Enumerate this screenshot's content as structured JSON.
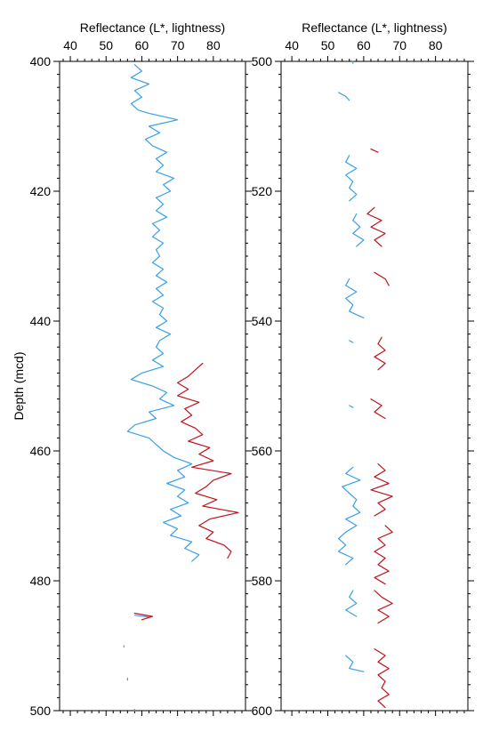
{
  "chart_data": [
    {
      "type": "line",
      "orientation": "depth-vertical",
      "xlabel": "Reflectance (L*, lightness)",
      "ylabel": "Depth (mcd)",
      "xlim": [
        37,
        89
      ],
      "ylim": [
        400,
        500
      ],
      "xticks": [
        40,
        50,
        60,
        70,
        80
      ],
      "yticks": [
        400,
        420,
        440,
        460,
        480,
        500
      ],
      "colors": {
        "blue": "#3aa0e8",
        "red": "#c0141c"
      },
      "series": [
        {
          "color": "blue",
          "segments": [
            [
              [
                400.5,
                58
              ],
              [
                401.5,
                60
              ],
              [
                402.5,
                57
              ],
              [
                403.5,
                62
              ],
              [
                404.5,
                58
              ],
              [
                405.5,
                60
              ],
              [
                406.5,
                57
              ],
              [
                407.5,
                59
              ],
              [
                408,
                62
              ],
              [
                409,
                70
              ],
              [
                410,
                62
              ],
              [
                411,
                65
              ],
              [
                412,
                61
              ],
              [
                413,
                63
              ],
              [
                414,
                67
              ],
              [
                415,
                64
              ],
              [
                416,
                66
              ],
              [
                417,
                64
              ],
              [
                418,
                69
              ],
              [
                419,
                66
              ],
              [
                420,
                68
              ],
              [
                421,
                64
              ],
              [
                422,
                66
              ],
              [
                423,
                64
              ],
              [
                424,
                67
              ],
              [
                425,
                63
              ],
              [
                426,
                65
              ],
              [
                427,
                63
              ],
              [
                428,
                66
              ],
              [
                429,
                64
              ],
              [
                430,
                65
              ],
              [
                431,
                63
              ],
              [
                432,
                66
              ],
              [
                433,
                64
              ],
              [
                434,
                67
              ],
              [
                435,
                64
              ],
              [
                436,
                66
              ],
              [
                437,
                63
              ],
              [
                438,
                66
              ],
              [
                439,
                65
              ],
              [
                440,
                67
              ],
              [
                441,
                64
              ],
              [
                442,
                68
              ],
              [
                443,
                65
              ],
              [
                444,
                64
              ],
              [
                445,
                66
              ],
              [
                446,
                63
              ],
              [
                447,
                66
              ],
              [
                448,
                60
              ],
              [
                449,
                57
              ],
              [
                450,
                63
              ],
              [
                451,
                67
              ],
              [
                452,
                65
              ],
              [
                453,
                69
              ],
              [
                454,
                62
              ],
              [
                455,
                64
              ],
              [
                456,
                58
              ],
              [
                457,
                56
              ],
              [
                458,
                62
              ],
              [
                459,
                64
              ],
              [
                460,
                66
              ],
              [
                461,
                69
              ],
              [
                462,
                74
              ],
              [
                463,
                70
              ],
              [
                464,
                72
              ],
              [
                465,
                67
              ],
              [
                466,
                72
              ],
              [
                467,
                70
              ],
              [
                468,
                73
              ],
              [
                469,
                68
              ],
              [
                470,
                71
              ],
              [
                471,
                66
              ],
              [
                472,
                70
              ],
              [
                473,
                68
              ],
              [
                474,
                74
              ],
              [
                475,
                72
              ],
              [
                476,
                76
              ],
              [
                477,
                74
              ]
            ],
            [
              [
                485.3,
                58
              ],
              [
                485.6,
                62
              ]
            ],
            [
              [
                490.0,
                55
              ],
              [
                490.2,
                55
              ]
            ],
            [
              [
                495.0,
                56
              ],
              [
                495.3,
                56
              ]
            ],
            [
              [
                499.8,
                58
              ],
              [
                500,
                58
              ]
            ]
          ]
        },
        {
          "color": "red",
          "segments": [
            [
              [
                446.5,
                77
              ],
              [
                447.5,
                75
              ],
              [
                448.5,
                73
              ],
              [
                449.5,
                70
              ],
              [
                450.5,
                73
              ],
              [
                451.5,
                70
              ],
              [
                452.5,
                76
              ],
              [
                453.5,
                72
              ],
              [
                454.5,
                74
              ],
              [
                455.5,
                71
              ],
              [
                456.5,
                75
              ],
              [
                457.5,
                77
              ],
              [
                458.5,
                73
              ],
              [
                459.5,
                79
              ],
              [
                460.5,
                76
              ],
              [
                461.5,
                80
              ],
              [
                462.5,
                74
              ],
              [
                463.5,
                85
              ],
              [
                464.5,
                80
              ],
              [
                465.5,
                78
              ],
              [
                466.5,
                75
              ],
              [
                467.5,
                81
              ],
              [
                468.5,
                77
              ],
              [
                469.5,
                87
              ],
              [
                470.5,
                79
              ],
              [
                471.5,
                76
              ],
              [
                472.5,
                80
              ],
              [
                473.5,
                78
              ],
              [
                474.5,
                83
              ],
              [
                475.5,
                85
              ],
              [
                476.5,
                84
              ]
            ],
            [
              [
                485,
                58
              ],
              [
                485.5,
                63
              ],
              [
                486,
                60
              ]
            ]
          ]
        }
      ]
    },
    {
      "type": "line",
      "orientation": "depth-vertical",
      "xlabel": "Reflectance (L*, lightness)",
      "ylabel": "",
      "xlim": [
        37,
        89
      ],
      "ylim": [
        500,
        600
      ],
      "xticks": [
        40,
        50,
        60,
        70,
        80
      ],
      "yticks": [
        500,
        520,
        540,
        560,
        580,
        600
      ],
      "colors": {
        "blue": "#3aa0e8",
        "red": "#c0141c"
      },
      "series": [
        {
          "color": "blue",
          "segments": [
            [
              [
                500,
                57
              ],
              [
                500.3,
                57
              ]
            ],
            [
              [
                504.8,
                53
              ],
              [
                505.4,
                55
              ],
              [
                506,
                56
              ]
            ],
            [
              [
                514.5,
                56
              ],
              [
                515.5,
                55
              ],
              [
                516.5,
                58
              ],
              [
                517.5,
                55
              ],
              [
                518.5,
                57
              ],
              [
                519.5,
                56
              ],
              [
                520.5,
                58
              ],
              [
                521.5,
                56
              ]
            ],
            [
              [
                523.5,
                58
              ],
              [
                524.5,
                57
              ],
              [
                525.5,
                59
              ],
              [
                526.5,
                57
              ],
              [
                527.5,
                60
              ],
              [
                528.5,
                58
              ]
            ],
            [
              [
                533.5,
                56
              ],
              [
                534.5,
                55
              ],
              [
                535.5,
                58
              ],
              [
                536.5,
                55
              ],
              [
                537.5,
                57
              ],
              [
                538.5,
                56
              ],
              [
                539.5,
                60
              ]
            ],
            [
              [
                543,
                56
              ],
              [
                543.3,
                57
              ]
            ],
            [
              [
                553,
                56
              ],
              [
                553.3,
                57
              ]
            ],
            [
              [
                562.5,
                57
              ],
              [
                563.5,
                55
              ],
              [
                564.5,
                59
              ],
              [
                565.5,
                54
              ],
              [
                566.5,
                56
              ],
              [
                567.5,
                58
              ],
              [
                568.5,
                57
              ],
              [
                569.5,
                59
              ],
              [
                570.5,
                55
              ],
              [
                571.5,
                58
              ],
              [
                572.5,
                55
              ],
              [
                573.5,
                53
              ],
              [
                574.5,
                55
              ],
              [
                575.5,
                53
              ],
              [
                576.5,
                57
              ],
              [
                577.5,
                55
              ]
            ],
            [
              [
                581.5,
                57
              ],
              [
                582.5,
                56
              ],
              [
                583.5,
                58
              ],
              [
                584.5,
                55
              ],
              [
                585.5,
                58
              ]
            ],
            [
              [
                591.5,
                55
              ],
              [
                592.5,
                57
              ],
              [
                593.5,
                56
              ],
              [
                594,
                60
              ]
            ]
          ]
        },
        {
          "color": "red",
          "segments": [
            [
              [
                513.5,
                62
              ],
              [
                514,
                64
              ]
            ],
            [
              [
                522.5,
                63
              ],
              [
                523.5,
                61
              ],
              [
                524.5,
                65
              ],
              [
                525.5,
                62
              ],
              [
                526.5,
                66
              ],
              [
                527.5,
                63
              ],
              [
                528.5,
                65
              ]
            ],
            [
              [
                532.5,
                63
              ],
              [
                533.5,
                66
              ],
              [
                534.5,
                67
              ]
            ],
            [
              [
                542.5,
                65
              ],
              [
                543.5,
                64
              ],
              [
                544.5,
                66
              ],
              [
                545.5,
                63
              ],
              [
                546.5,
                66
              ],
              [
                547.5,
                64
              ]
            ],
            [
              [
                552,
                62
              ],
              [
                553,
                65
              ],
              [
                554,
                63
              ],
              [
                555,
                66
              ]
            ],
            [
              [
                562,
                64
              ],
              [
                563,
                66
              ],
              [
                564,
                63
              ],
              [
                565,
                67
              ],
              [
                566,
                62
              ],
              [
                567,
                68
              ],
              [
                568,
                64
              ],
              [
                569,
                66
              ],
              [
                570,
                63
              ]
            ],
            [
              [
                571.5,
                66
              ],
              [
                572.5,
                68
              ],
              [
                573.5,
                64
              ],
              [
                574.5,
                66
              ],
              [
                575.5,
                63
              ],
              [
                576.5,
                66
              ],
              [
                577.5,
                64
              ],
              [
                578.5,
                67
              ],
              [
                579.5,
                63
              ],
              [
                580.5,
                66
              ]
            ],
            [
              [
                581.5,
                63
              ],
              [
                582.5,
                65
              ],
              [
                583.5,
                68
              ],
              [
                584.5,
                64
              ],
              [
                585.5,
                67
              ],
              [
                586.5,
                64
              ]
            ],
            [
              [
                590.5,
                63
              ],
              [
                591.5,
                66
              ],
              [
                592.5,
                64
              ],
              [
                593.5,
                67
              ],
              [
                594.5,
                64
              ],
              [
                595.5,
                66
              ],
              [
                596.5,
                65
              ],
              [
                597.5,
                67
              ],
              [
                598.5,
                64
              ],
              [
                599.5,
                66
              ]
            ]
          ]
        }
      ]
    }
  ]
}
